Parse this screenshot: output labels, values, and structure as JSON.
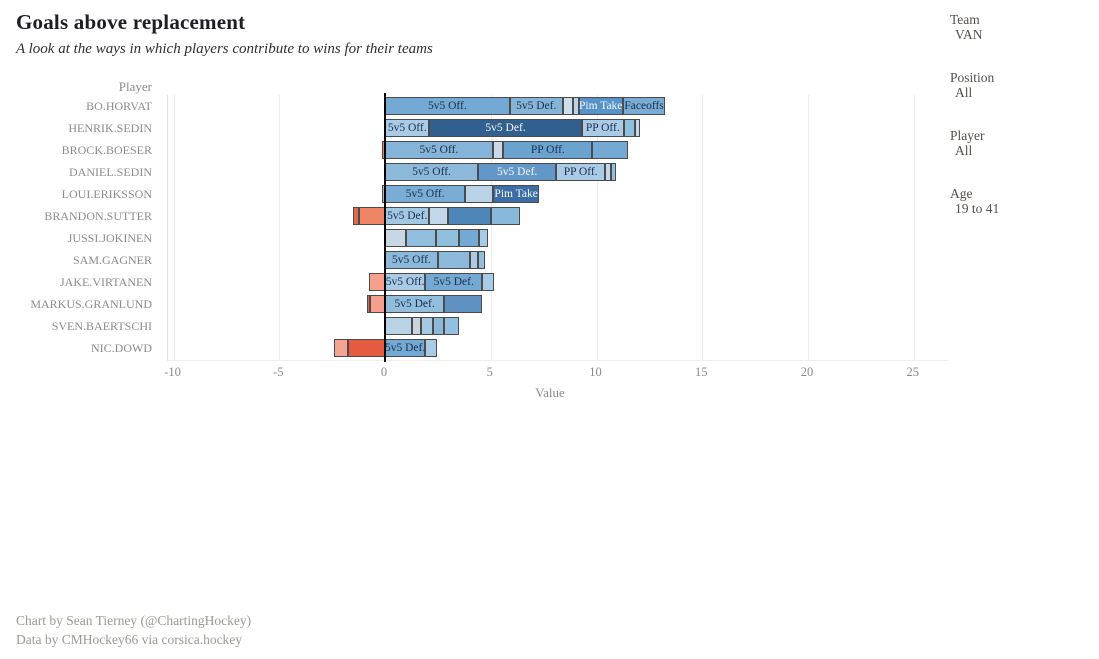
{
  "header": {
    "title": "Goals above replacement",
    "subtitle": "A look at the ways in which players contribute to wins for their teams"
  },
  "filters": [
    {
      "label": "Team",
      "value": "VAN"
    },
    {
      "label": "Position",
      "value": "All"
    },
    {
      "label": "Player",
      "value": "All"
    },
    {
      "label": "Age",
      "value": "19 to 41"
    }
  ],
  "footer": {
    "line1": "Chart by Sean Tierney (@ChartingHockey)",
    "line2": "Data by CMHockey66 via corsica.hockey"
  },
  "chart_data": {
    "type": "bar",
    "orientation": "horizontal",
    "stacked": true,
    "title": "Goals above replacement",
    "xlabel": "Value",
    "ylabel": "Player",
    "xlim": [
      -12.5,
      26.5
    ],
    "xticks": [
      -10,
      -5,
      0,
      5,
      10,
      15,
      20,
      25
    ],
    "grid": true,
    "legend": "labels-inside-segments",
    "text_colors": {
      "dark": "#1c2e4a",
      "white": "#f5f8fb"
    },
    "players": [
      {
        "name": "BO.HORVAT",
        "segments": [
          {
            "label": "5v5 Off.",
            "value": 5.9,
            "color": "#74a9d3",
            "text": "dark"
          },
          {
            "label": "5v5 Def.",
            "value": 2.5,
            "color": "#85b4d8",
            "text": "dark"
          },
          {
            "label": "",
            "value": 0.5,
            "color": "#cfdeed",
            "text": "dark"
          },
          {
            "label": "",
            "value": 0.25,
            "color": "#b8d2e8",
            "text": "dark"
          },
          {
            "label": "Pim Take",
            "value": 2.1,
            "color": "#5792c9",
            "text": "white"
          },
          {
            "label": "Faceoffs",
            "value": 2.0,
            "color": "#79abd4",
            "text": "dark"
          }
        ]
      },
      {
        "name": "HENRIK.SEDIN",
        "segments": [
          {
            "label": "5v5 Off.",
            "value": 2.1,
            "color": "#a9cbe5",
            "text": "dark"
          },
          {
            "label": "5v5 Def.",
            "value": 7.2,
            "color": "#31608f",
            "text": "white"
          },
          {
            "label": "PP Off.",
            "value": 2.0,
            "color": "#a9cbe5",
            "text": "dark"
          },
          {
            "label": "",
            "value": 0.5,
            "color": "#8fc0dd",
            "text": "dark"
          },
          {
            "label": "",
            "value": 0.25,
            "color": "#c3d7ea",
            "text": "dark"
          }
        ]
      },
      {
        "name": "BROCK.BOESER",
        "segments": [
          {
            "label": "",
            "value": -0.15,
            "color": "#e8836a",
            "text": "dark"
          },
          {
            "label": "5v5 Off.",
            "value": 5.1,
            "color": "#85b4d8",
            "text": "dark"
          },
          {
            "label": "",
            "value": 0.5,
            "color": "#ccd9e5",
            "text": "dark"
          },
          {
            "label": "PP Off.",
            "value": 4.2,
            "color": "#6ba3cf",
            "text": "dark"
          },
          {
            "label": "",
            "value": 1.7,
            "color": "#74a9d3",
            "text": "dark"
          }
        ]
      },
      {
        "name": "DANIEL.SEDIN",
        "segments": [
          {
            "label": "5v5 Off.",
            "value": 4.4,
            "color": "#8cb8da",
            "text": "dark"
          },
          {
            "label": "5v5 Def.",
            "value": 3.7,
            "color": "#6297c7",
            "text": "white"
          },
          {
            "label": "PP Off.",
            "value": 2.3,
            "color": "#a9cbe5",
            "text": "dark"
          },
          {
            "label": "",
            "value": 0.3,
            "color": "#c3d7ea",
            "text": "dark"
          },
          {
            "label": "",
            "value": 0.2,
            "color": "#8fc0dd",
            "text": "dark"
          }
        ]
      },
      {
        "name": "LOUI.ERIKSSON",
        "segments": [
          {
            "label": "",
            "value": -0.12,
            "color": "#b0bac3",
            "text": "dark"
          },
          {
            "label": "5v5 Off.",
            "value": 3.8,
            "color": "#79add5",
            "text": "dark"
          },
          {
            "label": "",
            "value": 1.3,
            "color": "#b8d2e8",
            "text": "dark"
          },
          {
            "label": "Pim Take",
            "value": 2.2,
            "color": "#3c6ea5",
            "text": "white"
          }
        ]
      },
      {
        "name": "BRANDON.SUTTER",
        "segments": [
          {
            "label": "",
            "value": -0.25,
            "color": "#dd6b4d",
            "text": "dark"
          },
          {
            "label": "",
            "value": -1.25,
            "color": "#f08467",
            "text": "dark"
          },
          {
            "label": "5v5 Def.",
            "value": 2.1,
            "color": "#a3c8e3",
            "text": "dark"
          },
          {
            "label": "",
            "value": 0.9,
            "color": "#c3d8ea",
            "text": "dark"
          },
          {
            "label": "",
            "value": 2.0,
            "color": "#4f86b8",
            "text": "dark"
          },
          {
            "label": "",
            "value": 1.4,
            "color": "#88b8dc",
            "text": "dark"
          }
        ]
      },
      {
        "name": "JUSSI.JOKINEN",
        "segments": [
          {
            "label": "",
            "value": 1.0,
            "color": "#c7d7e4",
            "text": "dark"
          },
          {
            "label": "",
            "value": 1.4,
            "color": "#92bede",
            "text": "dark"
          },
          {
            "label": "",
            "value": 1.1,
            "color": "#92bede",
            "text": "dark"
          },
          {
            "label": "",
            "value": 0.95,
            "color": "#74a9d3",
            "text": "dark"
          },
          {
            "label": "",
            "value": 0.4,
            "color": "#a9cbe5",
            "text": "dark"
          }
        ]
      },
      {
        "name": "SAM.GAGNER",
        "segments": [
          {
            "label": "5v5 Off.",
            "value": 2.5,
            "color": "#8cb8da",
            "text": "dark"
          },
          {
            "label": "",
            "value": 1.5,
            "color": "#8cb8da",
            "text": "dark"
          },
          {
            "label": "",
            "value": 0.4,
            "color": "#a9cbe5",
            "text": "dark"
          },
          {
            "label": "",
            "value": 0.35,
            "color": "#92bede",
            "text": "dark"
          }
        ]
      },
      {
        "name": "JAKE.VIRTANEN",
        "segments": [
          {
            "label": "",
            "value": -0.75,
            "color": "#f4a08c",
            "text": "dark"
          },
          {
            "label": "5v5 Off.",
            "value": 1.9,
            "color": "#a9cbe5",
            "text": "dark"
          },
          {
            "label": "5v5 Def.",
            "value": 2.7,
            "color": "#74a9d3",
            "text": "dark"
          },
          {
            "label": "",
            "value": 0.55,
            "color": "#a9cbe5",
            "text": "dark"
          }
        ]
      },
      {
        "name": "MARKUS.GRANLUND",
        "segments": [
          {
            "label": "",
            "value": -0.15,
            "color": "#dd6b4d",
            "text": "dark"
          },
          {
            "label": "",
            "value": -0.7,
            "color": "#f4a08c",
            "text": "dark"
          },
          {
            "label": "5v5 Def.",
            "value": 2.8,
            "color": "#92bede",
            "text": "dark"
          },
          {
            "label": "",
            "value": 1.8,
            "color": "#5f92c0",
            "text": "dark"
          }
        ]
      },
      {
        "name": "SVEN.BAERTSCHI",
        "segments": [
          {
            "label": "",
            "value": 1.3,
            "color": "#b8d3e6",
            "text": "dark"
          },
          {
            "label": "",
            "value": 0.4,
            "color": "#c9d4dc",
            "text": "dark"
          },
          {
            "label": "",
            "value": 0.55,
            "color": "#a5c9e2",
            "text": "dark"
          },
          {
            "label": "",
            "value": 0.55,
            "color": "#8cb8da",
            "text": "dark"
          },
          {
            "label": "",
            "value": 0.7,
            "color": "#92c0e0",
            "text": "dark"
          }
        ]
      },
      {
        "name": "NIC.DOWD",
        "segments": [
          {
            "label": "",
            "value": -0.65,
            "color": "#f4a592",
            "text": "dark"
          },
          {
            "label": "",
            "value": -1.75,
            "color": "#e55b41",
            "text": "dark"
          },
          {
            "label": "5v5 Def.",
            "value": 1.9,
            "color": "#74a9d3",
            "text": "dark"
          },
          {
            "label": "",
            "value": 0.55,
            "color": "#a9cbe5",
            "text": "dark"
          }
        ]
      }
    ]
  }
}
